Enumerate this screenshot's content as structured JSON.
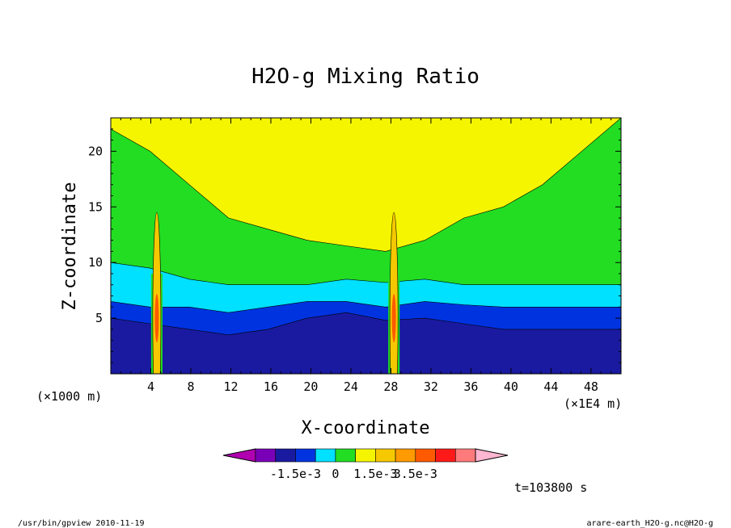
{
  "chart_data": {
    "type": "heatmap",
    "title": "H2O-g Mixing Ratio",
    "xlabel": "X-coordinate",
    "ylabel": "Z-coordinate",
    "x_unit_left": "(×1000 m)",
    "x_unit_right": "(×1E4 m)",
    "x_ticks": [
      "4",
      "8",
      "12",
      "16",
      "20",
      "24",
      "28",
      "32",
      "36",
      "40",
      "44",
      "48"
    ],
    "y_ticks": [
      "5",
      "10",
      "15",
      "20"
    ],
    "xlim": [
      0,
      51
    ],
    "ylim": [
      0,
      23
    ],
    "time_label": "t=103800 s",
    "colorbar": {
      "colors": [
        "#b000b0",
        "#7a00b8",
        "#1a1aa0",
        "#0033e0",
        "#00e0ff",
        "#22dd22",
        "#f5f500",
        "#f5c800",
        "#ff9a00",
        "#ff5a00",
        "#ff1a1a",
        "#ff7a7a",
        "#ffb6d0"
      ],
      "labels": [
        "-1.5e-3",
        "0",
        "1.5e-3",
        "3.5e-3"
      ]
    },
    "bands": [
      {
        "name": "green",
        "color": "#22dd22",
        "top": [
          22,
          20,
          17,
          14,
          13,
          12,
          11.5,
          11,
          12,
          14,
          15,
          17,
          20,
          23
        ]
      },
      {
        "name": "cyan",
        "color": "#00e0ff",
        "top": [
          10,
          9.5,
          8.5,
          8,
          8,
          8,
          8.5,
          8.2,
          8.5,
          8,
          8,
          8,
          8,
          8
        ]
      },
      {
        "name": "blue",
        "color": "#0033e0",
        "top": [
          6.5,
          6,
          6,
          5.5,
          6,
          6.5,
          6.5,
          6,
          6.5,
          6.2,
          6,
          6,
          6,
          6
        ]
      },
      {
        "name": "navy",
        "color": "#1a1aa0",
        "top": [
          5,
          4.5,
          4,
          3.5,
          4,
          5,
          5.5,
          4.8,
          5,
          4.5,
          4,
          4,
          4,
          4
        ]
      }
    ]
  },
  "footer": {
    "left": "/usr/bin/gpview   2010-11-19",
    "right": "arare-earth_H2O-g.nc@H2O-g"
  }
}
